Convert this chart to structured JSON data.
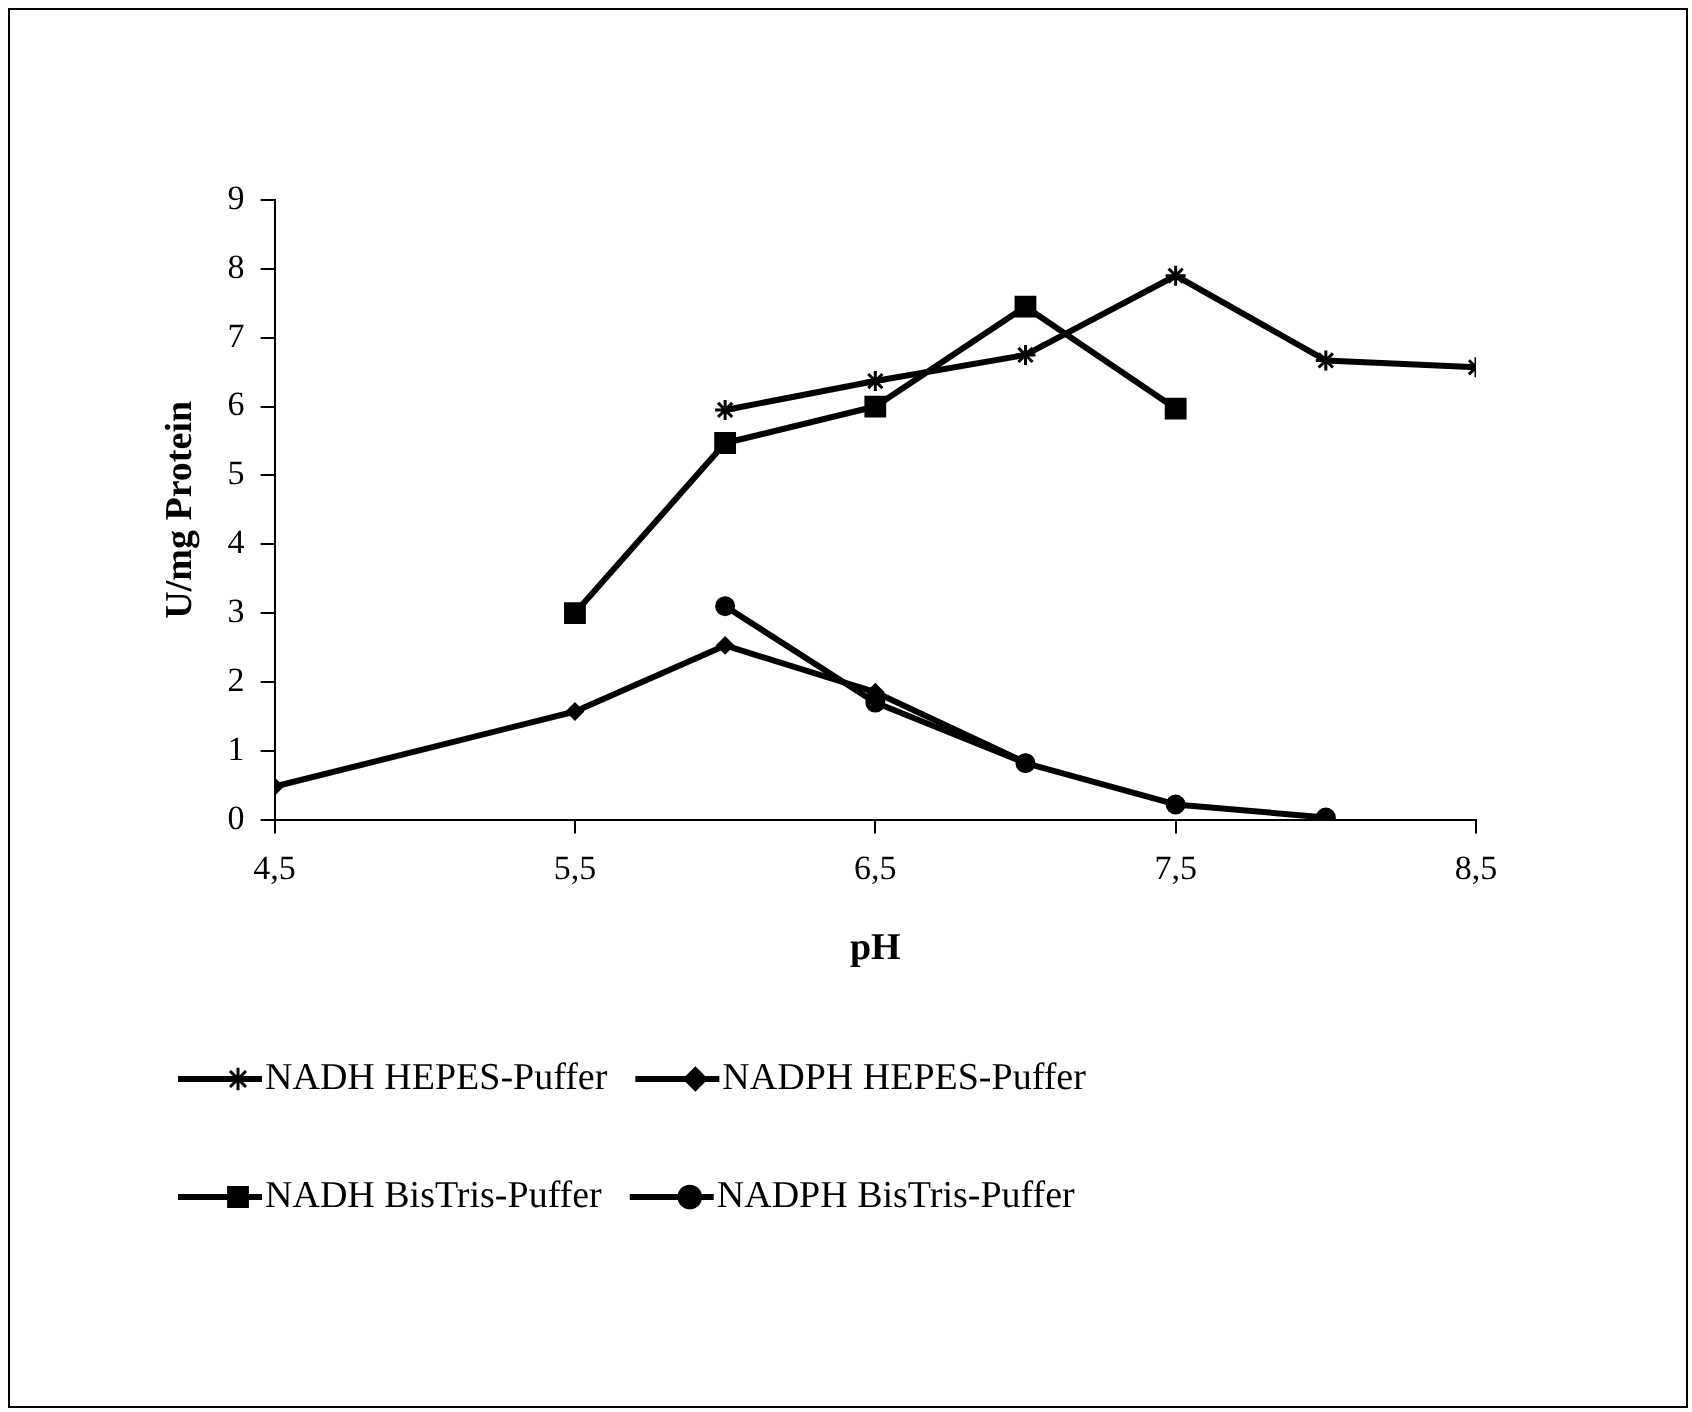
{
  "chart_data": {
    "type": "line",
    "xlabel": "pH",
    "ylabel": "U/mg Protein",
    "xlim": [
      4.5,
      8.5
    ],
    "xticks": [
      {
        "value": 4.5,
        "label": "4,5"
      },
      {
        "value": 5.5,
        "label": "5,5"
      },
      {
        "value": 6.5,
        "label": "6,5"
      },
      {
        "value": 7.5,
        "label": "7,5"
      },
      {
        "value": 8.5,
        "label": "8,5"
      }
    ],
    "ylim": [
      0,
      9
    ],
    "yticks": [
      0,
      1,
      2,
      3,
      4,
      5,
      6,
      7,
      8,
      9
    ],
    "grid": false,
    "legend": "bottom",
    "line_style": "solid",
    "series": [
      {
        "name": "NADH HEPES-Puffer",
        "color": "#000000",
        "marker": "cross",
        "x": [
          6,
          6.5,
          7,
          7.5,
          8,
          8.5
        ],
        "values": [
          5.95,
          6.37,
          6.75,
          7.9,
          6.67,
          6.57
        ]
      },
      {
        "name": "NADPH HEPES-Puffer",
        "color": "#000000",
        "marker": "diamond",
        "x": [
          4.5,
          5.5,
          6,
          6.5,
          7
        ],
        "values": [
          0.48,
          1.57,
          2.53,
          1.85,
          0.83
        ]
      },
      {
        "name": "NADH BisTris-Puffer",
        "color": "#000000",
        "marker": "square",
        "x": [
          5.5,
          6,
          6.5,
          7,
          7.5
        ],
        "values": [
          3.0,
          5.47,
          6.0,
          7.45,
          5.97
        ]
      },
      {
        "name": "NADPH BisTris-Puffer",
        "color": "#000000",
        "marker": "circle",
        "x": [
          6,
          6.5,
          7,
          7.5,
          8
        ],
        "values": [
          3.1,
          1.7,
          0.82,
          0.22,
          0.03
        ]
      }
    ]
  }
}
